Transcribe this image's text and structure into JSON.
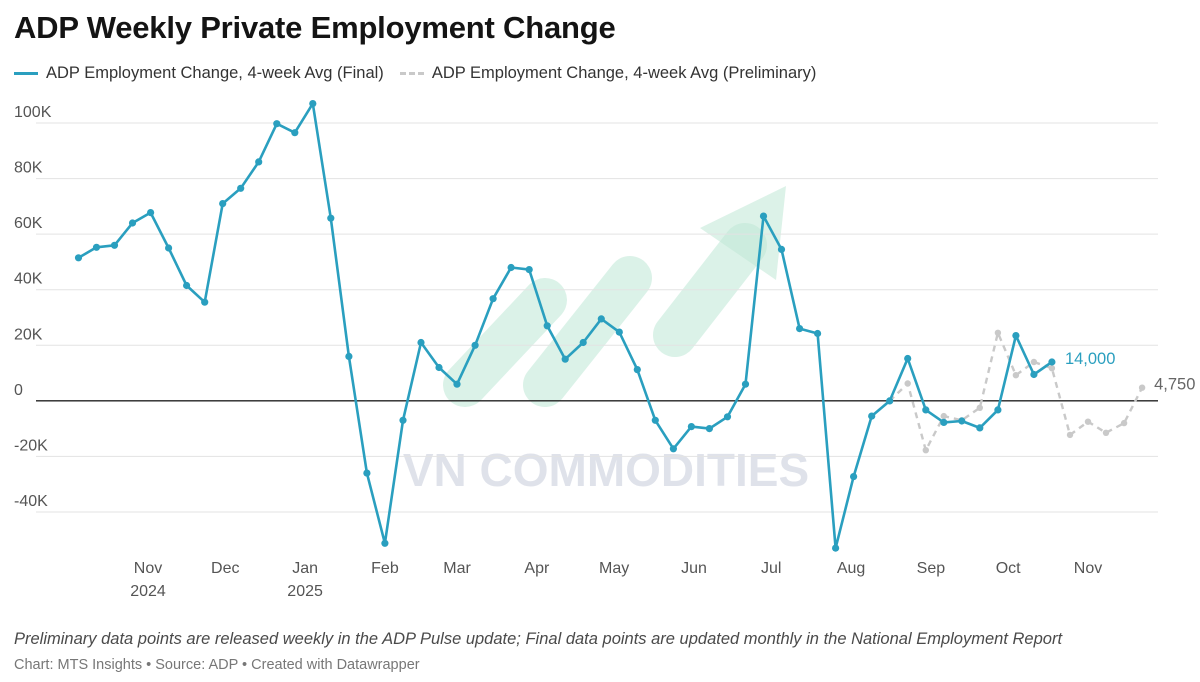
{
  "title": "ADP Weekly Private Employment Change",
  "legend": {
    "final_label": "ADP Employment Change, 4-week Avg (Final)",
    "preliminary_label": "ADP Employment Change, 4-week Avg (Preliminary)"
  },
  "notes": "Preliminary data points are released weekly in the ADP Pulse update; Final data points are updated monthly in the National Employment Report",
  "credit": "Chart: MTS Insights • Source: ADP • Created with Datawrapper",
  "watermark": "VN COMMODITIES",
  "colors": {
    "final": "#2a9fbf",
    "preliminary": "#c9c9c9",
    "watermark_arrow": "#bfe8d6",
    "watermark_text": "#d8dce6"
  },
  "chart_data": {
    "type": "line",
    "title": "ADP Weekly Private Employment Change",
    "ylim": [
      -50000,
      110000
    ],
    "y_ticks": [
      -40000,
      -20000,
      0,
      20000,
      40000,
      60000,
      80000,
      100000
    ],
    "y_tick_labels": [
      "-40K",
      "-20K",
      "0",
      "20K",
      "40K",
      "60K",
      "80K",
      "100K"
    ],
    "x_ticks": [
      {
        "label": "Nov",
        "sub": "2024",
        "x": "2024-11-01"
      },
      {
        "label": "Dec",
        "sub": "",
        "x": "2024-12-01"
      },
      {
        "label": "Jan",
        "sub": "2025",
        "x": "2025-01-01"
      },
      {
        "label": "Feb",
        "sub": "",
        "x": "2025-02-01"
      },
      {
        "label": "Mar",
        "sub": "",
        "x": "2025-03-01"
      },
      {
        "label": "Apr",
        "sub": "",
        "x": "2025-04-01"
      },
      {
        "label": "May",
        "sub": "",
        "x": "2025-05-01"
      },
      {
        "label": "Jun",
        "sub": "",
        "x": "2025-06-01"
      },
      {
        "label": "Jul",
        "sub": "",
        "x": "2025-07-01"
      },
      {
        "label": "Aug",
        "sub": "",
        "x": "2025-08-01"
      },
      {
        "label": "Sep",
        "sub": "",
        "x": "2025-09-01"
      },
      {
        "label": "Oct",
        "sub": "",
        "x": "2025-10-01"
      },
      {
        "label": "Nov",
        "sub": "",
        "x": "2025-11-01"
      }
    ],
    "grid": true,
    "legend_position": "top-left",
    "series": [
      {
        "name": "ADP Employment Change, 4-week Avg (Final)",
        "style": "solid",
        "end_label": "14,000",
        "points": [
          [
            "2024-10-05",
            51500
          ],
          [
            "2024-10-12",
            55250
          ],
          [
            "2024-10-19",
            56000
          ],
          [
            "2024-10-26",
            64000
          ],
          [
            "2024-11-02",
            67750
          ],
          [
            "2024-11-09",
            55000
          ],
          [
            "2024-11-16",
            41500
          ],
          [
            "2024-11-23",
            35500
          ],
          [
            "2024-11-30",
            71000
          ],
          [
            "2024-12-07",
            76500
          ],
          [
            "2024-12-14",
            86000
          ],
          [
            "2024-12-21",
            99750
          ],
          [
            "2024-12-28",
            96500
          ],
          [
            "2025-01-04",
            107000
          ],
          [
            "2025-01-11",
            65750
          ],
          [
            "2025-01-18",
            16000
          ],
          [
            "2025-01-25",
            -26000
          ],
          [
            "2025-02-01",
            -51250
          ],
          [
            "2025-02-08",
            -7000
          ],
          [
            "2025-02-15",
            21000
          ],
          [
            "2025-02-22",
            12000
          ],
          [
            "2025-03-01",
            6000
          ],
          [
            "2025-03-08",
            20000
          ],
          [
            "2025-03-15",
            36750
          ],
          [
            "2025-03-22",
            48000
          ],
          [
            "2025-03-29",
            47250
          ],
          [
            "2025-04-05",
            27000
          ],
          [
            "2025-04-12",
            15000
          ],
          [
            "2025-04-19",
            21000
          ],
          [
            "2025-04-26",
            29500
          ],
          [
            "2025-05-03",
            24750
          ],
          [
            "2025-05-10",
            11250
          ],
          [
            "2025-05-17",
            -7000
          ],
          [
            "2025-05-24",
            -17250
          ],
          [
            "2025-05-31",
            -9250
          ],
          [
            "2025-06-07",
            -10000
          ],
          [
            "2025-06-14",
            -5750
          ],
          [
            "2025-06-21",
            6000
          ],
          [
            "2025-06-28",
            66500
          ],
          [
            "2025-07-05",
            54500
          ],
          [
            "2025-07-12",
            26000
          ],
          [
            "2025-07-19",
            24250
          ],
          [
            "2025-07-26",
            -53000
          ],
          [
            "2025-08-02",
            -27250
          ],
          [
            "2025-08-09",
            -5500
          ],
          [
            "2025-08-16",
            0
          ],
          [
            "2025-08-23",
            15250
          ],
          [
            "2025-08-30",
            -3250
          ],
          [
            "2025-09-06",
            -7750
          ],
          [
            "2025-09-13",
            -7250
          ],
          [
            "2025-09-20",
            -9750
          ],
          [
            "2025-09-27",
            -3250
          ],
          [
            "2025-10-04",
            23500
          ],
          [
            "2025-10-11",
            9500
          ],
          [
            "2025-10-18",
            14000
          ]
        ]
      },
      {
        "name": "ADP Employment Change, 4-week Avg (Preliminary)",
        "style": "dashed",
        "end_label": "4,750",
        "points": [
          [
            "2025-08-16",
            0
          ],
          [
            "2025-08-23",
            6250
          ],
          [
            "2025-08-30",
            -17750
          ],
          [
            "2025-09-06",
            -5500
          ],
          [
            "2025-09-13",
            -7000
          ],
          [
            "2025-09-20",
            -2500
          ],
          [
            "2025-09-27",
            24500
          ],
          [
            "2025-10-04",
            9250
          ],
          [
            "2025-10-11",
            14000
          ],
          [
            "2025-10-18",
            11750
          ],
          [
            "2025-10-25",
            -12250
          ],
          [
            "2025-11-01",
            -7500
          ],
          [
            "2025-11-08",
            -11500
          ],
          [
            "2025-11-15",
            -8000
          ],
          [
            "2025-11-22",
            4750
          ]
        ]
      }
    ]
  }
}
